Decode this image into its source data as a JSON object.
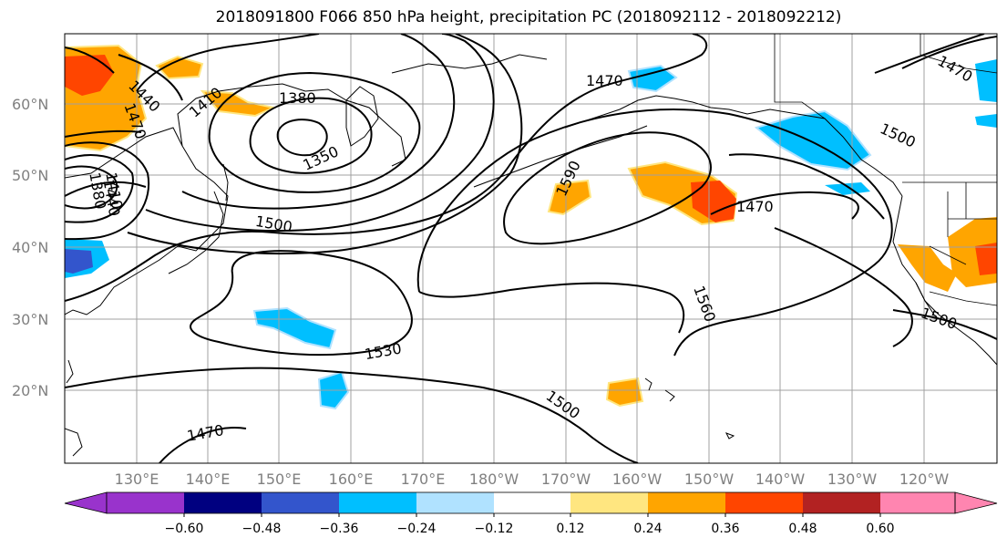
{
  "title": "2018091800 F066 850 hPa height, precipitation PC (2018092112 - 2018092212)",
  "lat_labels": [
    "60°N",
    "50°N",
    "40°N",
    "30°N",
    "20°N"
  ],
  "lon_labels": [
    "130°E",
    "140°E",
    "150°E",
    "160°E",
    "170°E",
    "180°W",
    "170°W",
    "160°W",
    "150°W",
    "140°W",
    "130°W",
    "120°W"
  ],
  "contour_labels": [
    "1440",
    "1470",
    "1410",
    "1380",
    "1350",
    "1470",
    "1590",
    "1500",
    "1470",
    "1500",
    "1530",
    "1560",
    "1500",
    "1500",
    "1470",
    "1440",
    "1410",
    "1380",
    "1470"
  ],
  "colorbar": {
    "ticks": [
      "−0.60",
      "−0.48",
      "−0.36",
      "−0.24",
      "−0.12",
      "0.12",
      "0.24",
      "0.36",
      "0.48",
      "0.60"
    ],
    "colors": [
      "#9933cc",
      "#000080",
      "#3355cc",
      "#00bfff",
      "#b0e2ff",
      "#ffffff",
      "#ffe680",
      "#ffa500",
      "#ff4500",
      "#b22222",
      "#ff85b0"
    ]
  },
  "fill_colors": {
    "blue": "#00bfff",
    "dark_blue": "#3355cc",
    "light_blue": "#b0e2ff",
    "orange": "#ffa500",
    "red": "#ff4500",
    "yellow": "#ffe680"
  }
}
